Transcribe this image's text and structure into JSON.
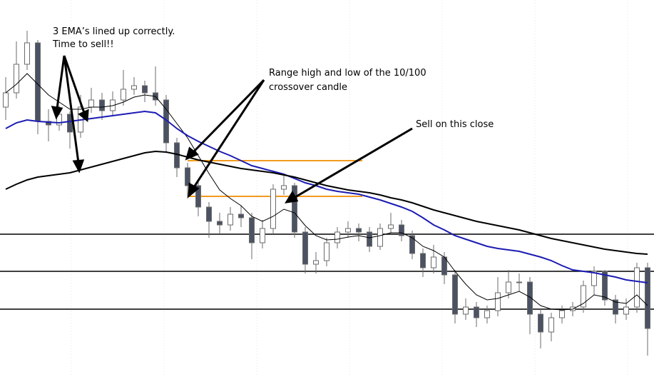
{
  "chart_data": {
    "type": "candlestick",
    "ylim": [
      0,
      528
    ],
    "open": [
      378,
      398,
      438,
      468,
      358,
      353,
      368,
      343,
      378,
      388,
      373,
      388,
      403,
      408,
      398,
      388,
      328,
      293,
      268,
      238,
      218,
      213,
      228,
      223,
      188,
      208,
      263,
      268,
      203,
      158,
      163,
      188,
      203,
      208,
      203,
      183,
      208,
      213,
      198,
      173,
      153,
      168,
      143,
      88,
      98,
      83,
      93,
      118,
      133,
      133,
      88,
      63,
      83,
      93,
      98,
      128,
      148,
      108,
      88,
      98,
      153
    ],
    "high": [
      420,
      470,
      485,
      472,
      375,
      380,
      372,
      395,
      405,
      398,
      400,
      430,
      420,
      415,
      435,
      395,
      335,
      300,
      275,
      245,
      230,
      238,
      240,
      230,
      220,
      270,
      285,
      272,
      210,
      175,
      195,
      210,
      218,
      215,
      210,
      215,
      230,
      220,
      205,
      180,
      185,
      175,
      150,
      110,
      105,
      100,
      140,
      150,
      145,
      140,
      95,
      90,
      100,
      105,
      135,
      155,
      150,
      115,
      110,
      160,
      160
    ],
    "low": [
      360,
      390,
      430,
      340,
      330,
      345,
      320,
      335,
      370,
      360,
      365,
      380,
      395,
      385,
      380,
      315,
      280,
      250,
      225,
      195,
      200,
      205,
      210,
      165,
      180,
      200,
      255,
      195,
      145,
      145,
      155,
      180,
      195,
      190,
      175,
      178,
      200,
      190,
      165,
      140,
      145,
      130,
      75,
      80,
      70,
      75,
      85,
      110,
      120,
      60,
      40,
      50,
      75,
      85,
      90,
      115,
      100,
      75,
      80,
      90,
      30
    ],
    "close": [
      398,
      438,
      468,
      358,
      353,
      368,
      343,
      378,
      388,
      373,
      388,
      403,
      408,
      398,
      388,
      328,
      293,
      268,
      238,
      218,
      213,
      228,
      223,
      188,
      208,
      263,
      268,
      203,
      158,
      163,
      188,
      203,
      208,
      203,
      183,
      208,
      213,
      198,
      173,
      153,
      168,
      143,
      88,
      98,
      83,
      93,
      118,
      133,
      133,
      88,
      63,
      83,
      93,
      98,
      128,
      148,
      108,
      88,
      98,
      153,
      68
    ],
    "up_color": "#ffffff",
    "down_color": "#4b5263",
    "candle_edge": "#6b6b6b",
    "lines": [
      {
        "color": "#000000",
        "line_width": 1,
        "values": [
          398,
          410,
          425,
          410,
          395,
          385,
          375,
          375,
          378,
          378,
          380,
          385,
          392,
          395,
          393,
          375,
          355,
          335,
          310,
          285,
          262,
          250,
          240,
          225,
          218,
          225,
          235,
          230,
          212,
          198,
          192,
          193,
          196,
          198,
          195,
          198,
          202,
          202,
          195,
          183,
          177,
          168,
          148,
          130,
          115,
          108,
          110,
          115,
          120,
          112,
          100,
          95,
          94,
          95,
          103,
          115,
          112,
          105,
          103,
          115,
          100
        ]
      },
      {
        "color": "#1c1cb4",
        "line_width": 2,
        "values": [
          348,
          356,
          360,
          358,
          357,
          356,
          358,
          360,
          362,
          364,
          366,
          368,
          370,
          372,
          370,
          360,
          348,
          338,
          330,
          323,
          316,
          310,
          303,
          296,
          292,
          288,
          284,
          278,
          272,
          268,
          263,
          260,
          258,
          256,
          252,
          248,
          243,
          238,
          232,
          223,
          213,
          206,
          198,
          193,
          188,
          183,
          180,
          178,
          176,
          172,
          168,
          163,
          156,
          150,
          148,
          146,
          143,
          140,
          136,
          134,
          132
        ]
      },
      {
        "color": "#000000",
        "line_width": 2,
        "values": [
          263,
          270,
          276,
          280,
          282,
          284,
          286,
          290,
          294,
          298,
          302,
          306,
          310,
          314,
          316,
          315,
          312,
          308,
          304,
          301,
          298,
          295,
          292,
          290,
          288,
          286,
          283,
          280,
          276,
          272,
          268,
          265,
          262,
          260,
          258,
          255,
          251,
          248,
          244,
          239,
          234,
          230,
          226,
          222,
          218,
          215,
          212,
          209,
          206,
          202,
          198,
          194,
          191,
          188,
          185,
          182,
          179,
          177,
          175,
          173,
          172
        ]
      }
    ],
    "levels": {
      "color": "#000000",
      "values": [
        200,
        148,
        95
      ]
    },
    "range": {
      "color": "#f29a1f",
      "values": [
        303,
        253
      ]
    },
    "annotations": [
      [
        "3 EMA’s lined up correctly.",
        "Time to sell!!"
      ],
      [
        "Range high and low of the 10/100",
        "crossover candle"
      ],
      [
        "Sell on this close"
      ]
    ]
  }
}
